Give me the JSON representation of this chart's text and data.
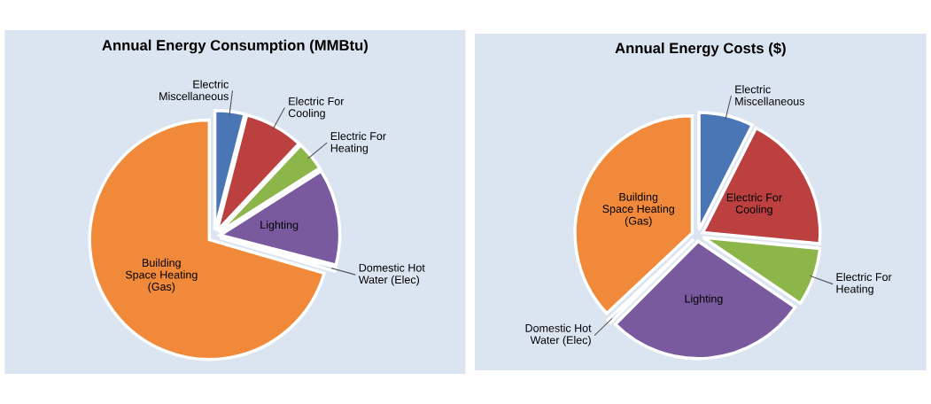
{
  "chart_data": [
    {
      "type": "pie",
      "title": "Annual Energy Consumption (MMBtu)",
      "categories": [
        "Electric\nMiscellaneous",
        "Electric For\nCooling",
        "Electric For\nHeating",
        "Lighting",
        "Domestic Hot\nWater (Elec)",
        "Building\nSpace Heating\n(Gas)"
      ],
      "values": [
        4,
        8,
        4,
        13,
        0.5,
        70.5
      ],
      "colors": [
        "#4a76b5",
        "#bd4040",
        "#8cb54a",
        "#7a5a9e",
        "#6fa8c8",
        "#f08a3a"
      ]
    },
    {
      "type": "pie",
      "title": "Annual Energy Costs ($)",
      "categories": [
        "Electric\nMiscellaneous",
        "Electric For\nCooling",
        "Electric For\nHeating",
        "Lighting",
        "Domestic Hot\nWater (Elec)",
        "Building\nSpace Heating\n(Gas)"
      ],
      "values": [
        7.5,
        19,
        8,
        28,
        0.5,
        37
      ],
      "colors": [
        "#4a76b5",
        "#bd4040",
        "#8cb54a",
        "#7a5a9e",
        "#6fa8c8",
        "#f08a3a"
      ]
    }
  ]
}
